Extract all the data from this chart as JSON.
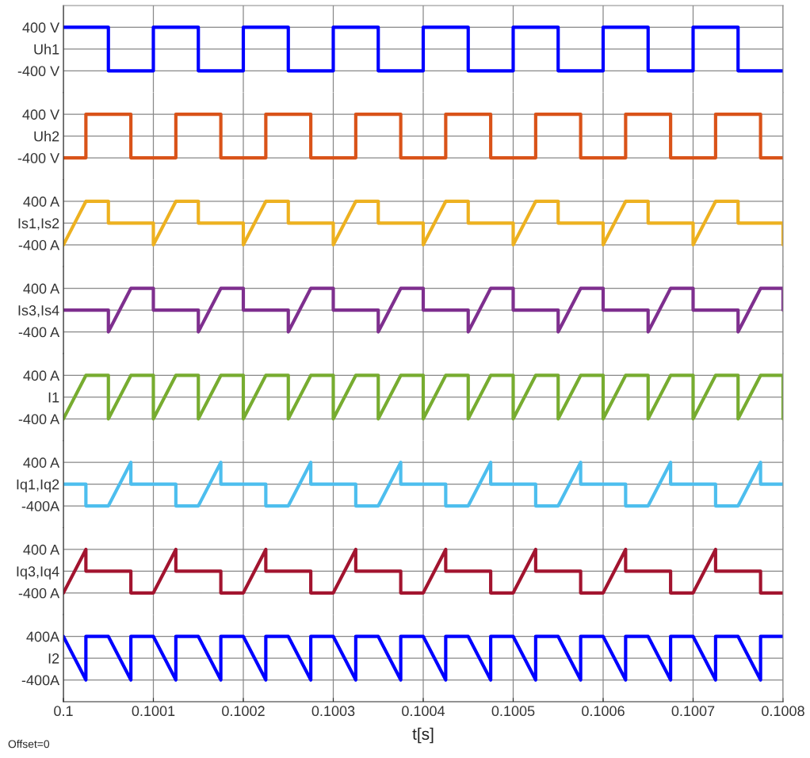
{
  "chart_data": [
    {
      "type": "line",
      "xlim": [
        0.1,
        0.1008
      ],
      "xticks": [
        0.1,
        0.1001,
        0.1002,
        0.1003,
        0.1004,
        0.1005,
        0.1006,
        0.1007,
        0.1008
      ],
      "ylim": [
        -800,
        800
      ],
      "yticks": [
        {
          "value": 400,
          "label": "400 V"
        },
        {
          "value": 0,
          "label": "Uh1"
        },
        {
          "value": -400,
          "label": "-400 V"
        }
      ],
      "grid": true,
      "tick_labels": "y",
      "series": [
        {
          "color": "#0000ff",
          "x": [
            0.1,
            0.10005,
            0.10005,
            0.1001,
            0.1001,
            0.10015,
            0.10015,
            0.1002,
            0.1002,
            0.10025,
            0.10025,
            0.1003,
            0.1003,
            0.10035,
            0.10035,
            0.1004,
            0.1004,
            0.10045,
            0.10045,
            0.1005,
            0.1005,
            0.10055,
            0.10055,
            0.1006,
            0.1006,
            0.10065,
            0.10065,
            0.1007,
            0.1007,
            0.10075,
            0.10075,
            0.1008
          ],
          "values": [
            400,
            400,
            -400,
            -400,
            400,
            400,
            -400,
            -400,
            400,
            400,
            -400,
            -400,
            400,
            400,
            -400,
            -400,
            400,
            400,
            -400,
            -400,
            400,
            400,
            -400,
            -400,
            400,
            400,
            -400,
            -400,
            400,
            400,
            -400,
            -400
          ]
        }
      ]
    },
    {
      "type": "line",
      "xlim": [
        0.1,
        0.1008
      ],
      "xticks": [
        0.1,
        0.1001,
        0.1002,
        0.1003,
        0.1004,
        0.1005,
        0.1006,
        0.1007,
        0.1008
      ],
      "ylim": [
        -800,
        800
      ],
      "yticks": [
        {
          "value": 400,
          "label": "400 V"
        },
        {
          "value": 0,
          "label": "Uh2"
        },
        {
          "value": -400,
          "label": "-400 V"
        }
      ],
      "grid": true,
      "tick_labels": "y",
      "series": [
        {
          "color": "#d95319",
          "x": [
            0.1,
            0.100025,
            0.100025,
            0.100075,
            0.100075,
            0.100125,
            0.100125,
            0.100175,
            0.100175,
            0.100225,
            0.100225,
            0.100275,
            0.100275,
            0.100325,
            0.100325,
            0.100375,
            0.100375,
            0.100425,
            0.100425,
            0.100475,
            0.100475,
            0.100525,
            0.100525,
            0.100575,
            0.100575,
            0.100625,
            0.100625,
            0.100675,
            0.100675,
            0.100725,
            0.100725,
            0.100775,
            0.100775,
            0.1008
          ],
          "values": [
            -400,
            -400,
            400,
            400,
            -400,
            -400,
            400,
            400,
            -400,
            -400,
            400,
            400,
            -400,
            -400,
            400,
            400,
            -400,
            -400,
            400,
            400,
            -400,
            -400,
            400,
            400,
            -400,
            -400,
            400,
            400,
            -400,
            -400,
            400,
            400,
            -400,
            -400
          ]
        }
      ]
    },
    {
      "type": "line",
      "xlim": [
        0.1,
        0.1008
      ],
      "xticks": [
        0.1,
        0.1001,
        0.1002,
        0.1003,
        0.1004,
        0.1005,
        0.1006,
        0.1007,
        0.1008
      ],
      "ylim": [
        -800,
        800
      ],
      "yticks": [
        {
          "value": 400,
          "label": "400 A"
        },
        {
          "value": 0,
          "label": "Is1,Is2"
        },
        {
          "value": -400,
          "label": "-400 A"
        }
      ],
      "grid": true,
      "tick_labels": "y",
      "series": [
        {
          "color": "#edb120",
          "x": [
            0.1,
            0.100025,
            0.10005,
            0.10005,
            0.1001,
            0.1001,
            0.100125,
            0.10015,
            0.10015,
            0.1002,
            0.1002,
            0.100225,
            0.10025,
            0.10025,
            0.1003,
            0.1003,
            0.100325,
            0.10035,
            0.10035,
            0.1004,
            0.1004,
            0.100425,
            0.10045,
            0.10045,
            0.1005,
            0.1005,
            0.100525,
            0.10055,
            0.10055,
            0.1006,
            0.1006,
            0.100625,
            0.10065,
            0.10065,
            0.1007,
            0.1007,
            0.100725,
            0.10075,
            0.10075,
            0.1008,
            0.1008
          ],
          "values": [
            -400,
            400,
            400,
            0,
            0,
            -400,
            400,
            400,
            0,
            0,
            -400,
            400,
            400,
            0,
            0,
            -400,
            400,
            400,
            0,
            0,
            -400,
            400,
            400,
            0,
            0,
            -400,
            400,
            400,
            0,
            0,
            -400,
            400,
            400,
            0,
            0,
            -400,
            400,
            400,
            0,
            0,
            -400
          ]
        }
      ]
    },
    {
      "type": "line",
      "xlim": [
        0.1,
        0.1008
      ],
      "xticks": [
        0.1,
        0.1001,
        0.1002,
        0.1003,
        0.1004,
        0.1005,
        0.1006,
        0.1007,
        0.1008
      ],
      "ylim": [
        -800,
        800
      ],
      "yticks": [
        {
          "value": 400,
          "label": "400 A"
        },
        {
          "value": 0,
          "label": "Is3,Is4"
        },
        {
          "value": -400,
          "label": "-400 A"
        }
      ],
      "grid": true,
      "tick_labels": "y",
      "series": [
        {
          "color": "#7e2f8e",
          "x": [
            0.1,
            0.10005,
            0.10005,
            0.100075,
            0.1001,
            0.1001,
            0.10015,
            0.10015,
            0.100175,
            0.1002,
            0.1002,
            0.10025,
            0.10025,
            0.100275,
            0.1003,
            0.1003,
            0.10035,
            0.10035,
            0.100375,
            0.1004,
            0.1004,
            0.10045,
            0.10045,
            0.100475,
            0.1005,
            0.1005,
            0.10055,
            0.10055,
            0.100575,
            0.1006,
            0.1006,
            0.10065,
            0.10065,
            0.100675,
            0.1007,
            0.1007,
            0.10075,
            0.10075,
            0.100775,
            0.1008,
            0.1008
          ],
          "values": [
            0,
            0,
            -400,
            400,
            400,
            0,
            0,
            -400,
            400,
            400,
            0,
            0,
            -400,
            400,
            400,
            0,
            0,
            -400,
            400,
            400,
            0,
            0,
            -400,
            400,
            400,
            0,
            0,
            -400,
            400,
            400,
            0,
            0,
            -400,
            400,
            400,
            0,
            0,
            -400,
            400,
            400,
            0
          ]
        }
      ]
    },
    {
      "type": "line",
      "xlim": [
        0.1,
        0.1008
      ],
      "xticks": [
        0.1,
        0.1001,
        0.1002,
        0.1003,
        0.1004,
        0.1005,
        0.1006,
        0.1007,
        0.1008
      ],
      "ylim": [
        -800,
        800
      ],
      "yticks": [
        {
          "value": 400,
          "label": "400 A"
        },
        {
          "value": 0,
          "label": "I1"
        },
        {
          "value": -400,
          "label": "-400 A"
        }
      ],
      "grid": true,
      "tick_labels": "y",
      "series": [
        {
          "color": "#77ac30",
          "x": [
            0.1,
            0.100025,
            0.10005,
            0.10005,
            0.100075,
            0.1001,
            0.1001,
            0.100125,
            0.10015,
            0.10015,
            0.100175,
            0.1002,
            0.1002,
            0.100225,
            0.10025,
            0.10025,
            0.100275,
            0.1003,
            0.1003,
            0.100325,
            0.10035,
            0.10035,
            0.100375,
            0.1004,
            0.1004,
            0.100425,
            0.10045,
            0.10045,
            0.100475,
            0.1005,
            0.1005,
            0.100525,
            0.10055,
            0.10055,
            0.100575,
            0.1006,
            0.1006,
            0.100625,
            0.10065,
            0.10065,
            0.100675,
            0.1007,
            0.1007,
            0.100725,
            0.10075,
            0.10075,
            0.100775,
            0.1008,
            0.1008
          ],
          "values": [
            -400,
            400,
            400,
            -400,
            400,
            400,
            -400,
            400,
            400,
            -400,
            400,
            400,
            -400,
            400,
            400,
            -400,
            400,
            400,
            -400,
            400,
            400,
            -400,
            400,
            400,
            -400,
            400,
            400,
            -400,
            400,
            400,
            -400,
            400,
            400,
            -400,
            400,
            400,
            -400,
            400,
            400,
            -400,
            400,
            400,
            -400,
            400,
            400,
            -400,
            400,
            400,
            -400
          ]
        }
      ]
    },
    {
      "type": "line",
      "xlim": [
        0.1,
        0.1008
      ],
      "xticks": [
        0.1,
        0.1001,
        0.1002,
        0.1003,
        0.1004,
        0.1005,
        0.1006,
        0.1007,
        0.1008
      ],
      "ylim": [
        -800,
        800
      ],
      "yticks": [
        {
          "value": 400,
          "label": "400 A"
        },
        {
          "value": 0,
          "label": "Iq1,Iq2"
        },
        {
          "value": -400,
          "label": "-400A"
        }
      ],
      "grid": true,
      "tick_labels": "y",
      "series": [
        {
          "color": "#4dbeee",
          "x": [
            0.1,
            0.100025,
            0.100025,
            0.10005,
            0.100075,
            0.100075,
            0.100125,
            0.100125,
            0.10015,
            0.100175,
            0.100175,
            0.100225,
            0.100225,
            0.10025,
            0.100275,
            0.100275,
            0.100325,
            0.100325,
            0.10035,
            0.100375,
            0.100375,
            0.100425,
            0.100425,
            0.10045,
            0.100475,
            0.100475,
            0.100525,
            0.100525,
            0.10055,
            0.100575,
            0.100575,
            0.100625,
            0.100625,
            0.10065,
            0.100675,
            0.100675,
            0.100725,
            0.100725,
            0.10075,
            0.100775,
            0.100775,
            0.1008
          ],
          "values": [
            0,
            0,
            -400,
            -400,
            400,
            0,
            0,
            -400,
            -400,
            400,
            0,
            0,
            -400,
            -400,
            400,
            0,
            0,
            -400,
            -400,
            400,
            0,
            0,
            -400,
            -400,
            400,
            0,
            0,
            -400,
            -400,
            400,
            0,
            0,
            -400,
            -400,
            400,
            0,
            0,
            -400,
            -400,
            400,
            0,
            0
          ]
        }
      ]
    },
    {
      "type": "line",
      "xlim": [
        0.1,
        0.1008
      ],
      "xticks": [
        0.1,
        0.1001,
        0.1002,
        0.1003,
        0.1004,
        0.1005,
        0.1006,
        0.1007,
        0.1008
      ],
      "ylim": [
        -800,
        800
      ],
      "yticks": [
        {
          "value": 400,
          "label": "400 A"
        },
        {
          "value": 0,
          "label": "Iq3,Iq4"
        },
        {
          "value": -400,
          "label": "-400 A"
        }
      ],
      "grid": true,
      "tick_labels": "y",
      "series": [
        {
          "color": "#a2142f",
          "x": [
            0.1,
            0.100025,
            0.100025,
            0.100075,
            0.100075,
            0.1001,
            0.100125,
            0.100125,
            0.100175,
            0.100175,
            0.1002,
            0.100225,
            0.100225,
            0.100275,
            0.100275,
            0.1003,
            0.100325,
            0.100325,
            0.100375,
            0.100375,
            0.1004,
            0.100425,
            0.100425,
            0.100475,
            0.100475,
            0.1005,
            0.100525,
            0.100525,
            0.100575,
            0.100575,
            0.1006,
            0.100625,
            0.100625,
            0.100675,
            0.100675,
            0.1007,
            0.100725,
            0.100725,
            0.100775,
            0.100775,
            0.1008
          ],
          "values": [
            -400,
            400,
            0,
            0,
            -400,
            -400,
            400,
            0,
            0,
            -400,
            -400,
            400,
            0,
            0,
            -400,
            -400,
            400,
            0,
            0,
            -400,
            -400,
            400,
            0,
            0,
            -400,
            -400,
            400,
            0,
            0,
            -400,
            -400,
            400,
            0,
            0,
            -400,
            -400,
            400,
            0,
            0,
            -400,
            -400
          ]
        }
      ]
    },
    {
      "type": "line",
      "xlim": [
        0.1,
        0.1008
      ],
      "xticks": [
        0.1,
        0.1001,
        0.1002,
        0.1003,
        0.1004,
        0.1005,
        0.1006,
        0.1007,
        0.1008
      ],
      "ylim": [
        -800,
        800
      ],
      "yticks": [
        {
          "value": 400,
          "label": "400A"
        },
        {
          "value": 0,
          "label": "I2"
        },
        {
          "value": -400,
          "label": "-400A"
        }
      ],
      "grid": true,
      "xlabel": "t[s]",
      "annotations": [
        "Offset=0"
      ],
      "series": [
        {
          "color": "#0000ff",
          "x": [
            0.1,
            0.100025,
            0.100025,
            0.10005,
            0.100075,
            0.100075,
            0.1001,
            0.100125,
            0.100125,
            0.10015,
            0.100175,
            0.100175,
            0.1002,
            0.100225,
            0.100225,
            0.10025,
            0.100275,
            0.100275,
            0.1003,
            0.100325,
            0.100325,
            0.10035,
            0.100375,
            0.100375,
            0.1004,
            0.100425,
            0.100425,
            0.10045,
            0.100475,
            0.100475,
            0.1005,
            0.100525,
            0.100525,
            0.10055,
            0.100575,
            0.100575,
            0.1006,
            0.100625,
            0.100625,
            0.10065,
            0.100675,
            0.100675,
            0.1007,
            0.100725,
            0.100725,
            0.10075,
            0.100775,
            0.100775,
            0.1008
          ],
          "values": [
            400,
            -400,
            400,
            400,
            -400,
            400,
            400,
            -400,
            400,
            400,
            -400,
            400,
            400,
            -400,
            400,
            400,
            -400,
            400,
            400,
            -400,
            400,
            400,
            -400,
            400,
            400,
            -400,
            400,
            400,
            -400,
            400,
            400,
            -400,
            400,
            400,
            -400,
            400,
            400,
            -400,
            400,
            400,
            -400,
            400,
            400,
            -400,
            400,
            400,
            -400,
            400,
            400
          ]
        }
      ]
    }
  ]
}
